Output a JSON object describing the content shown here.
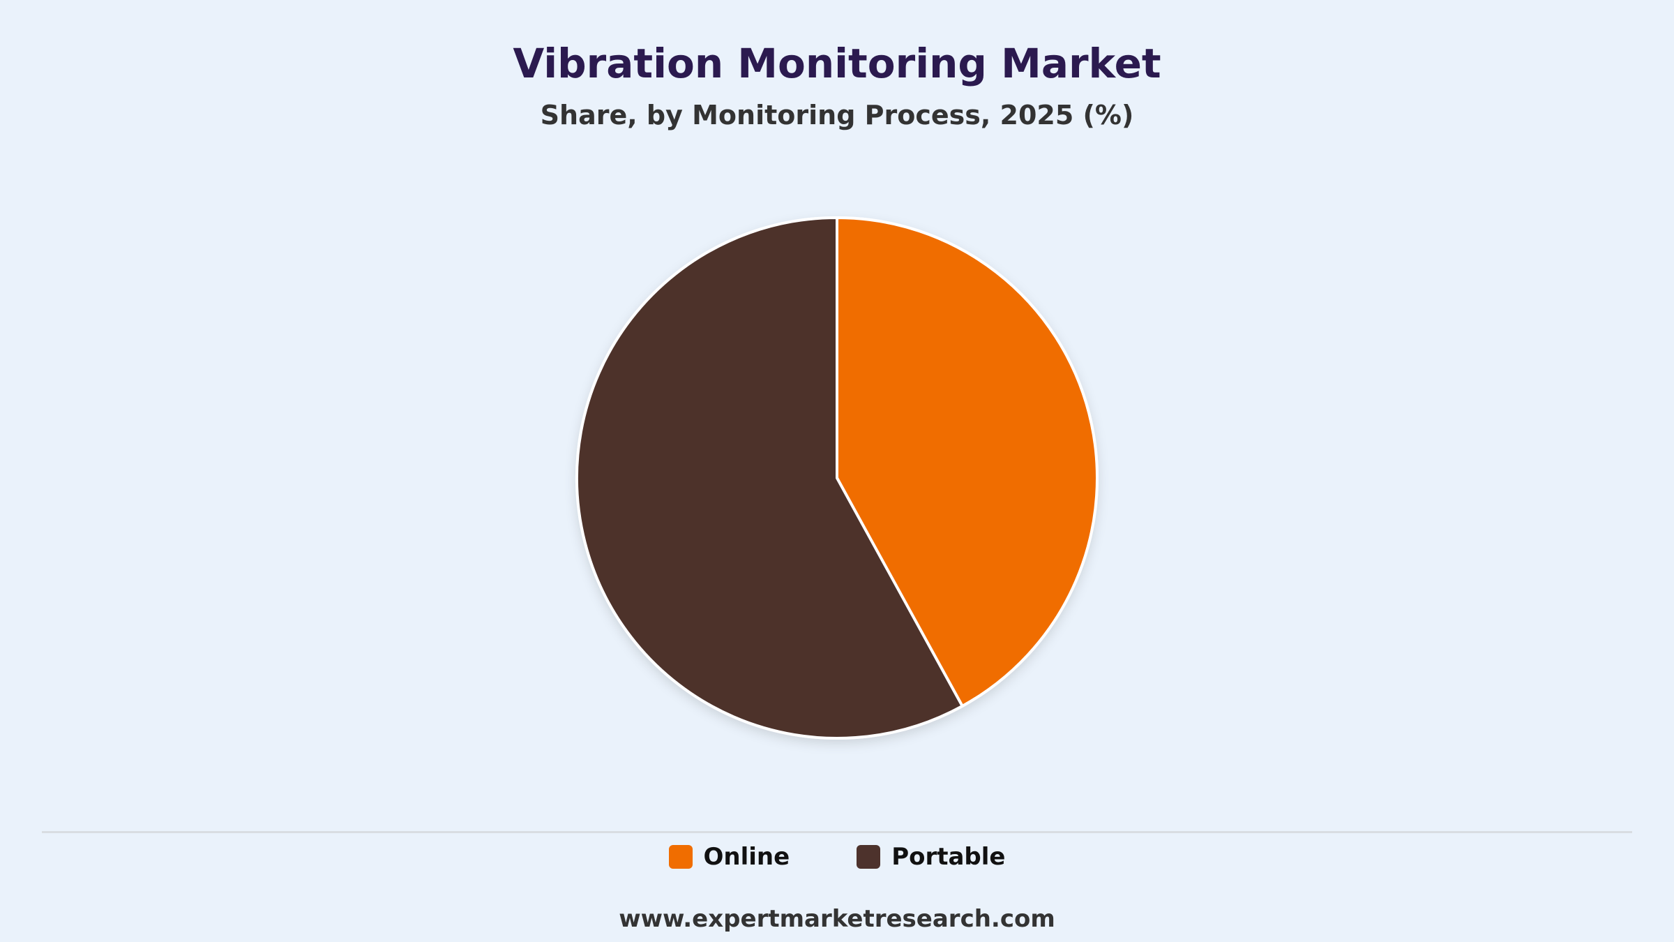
{
  "header": {
    "title": "Vibration Monitoring Market",
    "subtitle": "Share, by Monitoring Process, 2025 (%)"
  },
  "chart_data": {
    "type": "pie",
    "title": "Vibration Monitoring Market",
    "subtitle": "Share, by Monitoring Process, 2025 (%)",
    "categories": [
      "Online",
      "Portable"
    ],
    "values": [
      42,
      58
    ],
    "colors": [
      "#f06d00",
      "#4d322c"
    ],
    "start_angle": "12 o'clock",
    "direction": "clockwise",
    "legend_position": "bottom-center"
  },
  "legend": {
    "items": [
      {
        "label": "Online",
        "color": "#f06d00"
      },
      {
        "label": "Portable",
        "color": "#4d322c"
      }
    ]
  },
  "footer": {
    "website": "www.expertmarketresearch.com"
  }
}
